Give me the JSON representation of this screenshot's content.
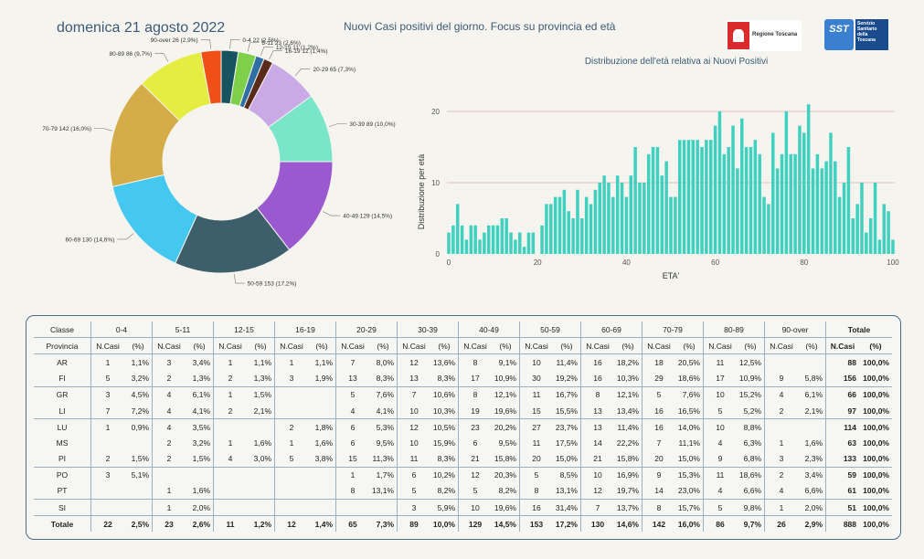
{
  "header": {
    "date": "domenica 21 agosto 2022",
    "title": "Nuovi Casi positivi del giorno. Focus su provincia ed età",
    "logo_regione": "Regione Toscana",
    "logo_sst_mark": "SST",
    "logo_sst_text": "Servizio Sanitario della Toscana"
  },
  "chart_data": [
    {
      "type": "pie",
      "donut": true,
      "slices": [
        {
          "label": "0-4 22 (2,5%)",
          "value": 22,
          "color": "#17545f"
        },
        {
          "label": "5-11 23 (2,6%)",
          "value": 23,
          "color": "#7ed04b"
        },
        {
          "label": "12-15 11 (1,2%)",
          "value": 11,
          "color": "#2f6fa3"
        },
        {
          "label": "16-19 12 (1,4%)",
          "value": 12,
          "color": "#5a2a1a"
        },
        {
          "label": "20-29 65 (7,3%)",
          "value": 65,
          "color": "#c9a9e6"
        },
        {
          "label": "30-39 89 (10,0%)",
          "value": 89,
          "color": "#79e6c9"
        },
        {
          "label": "40-49 129 (14,5%)",
          "value": 129,
          "color": "#9b59d0"
        },
        {
          "label": "50-59 153 (17,2%)",
          "value": 153,
          "color": "#3d5f6b"
        },
        {
          "label": "60-69 130 (14,6%)",
          "value": 130,
          "color": "#45c8f0"
        },
        {
          "label": "70-79 142 (16,0%)",
          "value": 142,
          "color": "#d4ad48"
        },
        {
          "label": "80-89 86 (9,7%)",
          "value": 86,
          "color": "#e5ee40"
        },
        {
          "label": "90-over 26 (2,9%)",
          "value": 26,
          "color": "#f05018"
        }
      ]
    },
    {
      "type": "bar",
      "title": "Distribuzione dell'età relativa ai Nuovi Positivi",
      "xlabel": "ETA'",
      "ylabel": "Distribuzione per età",
      "xlim": [
        0,
        100
      ],
      "ylim": [
        0,
        20
      ],
      "xticks": [
        0,
        20,
        40,
        60,
        80,
        100
      ],
      "yticks": [
        0,
        10,
        20
      ],
      "color": "#40d0bf",
      "x": [
        0,
        1,
        2,
        3,
        4,
        5,
        6,
        7,
        8,
        9,
        10,
        11,
        12,
        13,
        14,
        15,
        16,
        17,
        18,
        19,
        20,
        21,
        22,
        23,
        24,
        25,
        26,
        27,
        28,
        29,
        30,
        31,
        32,
        33,
        34,
        35,
        36,
        37,
        38,
        39,
        40,
        41,
        42,
        43,
        44,
        45,
        46,
        47,
        48,
        49,
        50,
        51,
        52,
        53,
        54,
        55,
        56,
        57,
        58,
        59,
        60,
        61,
        62,
        63,
        64,
        65,
        66,
        67,
        68,
        69,
        70,
        71,
        72,
        73,
        74,
        75,
        76,
        77,
        78,
        79,
        80,
        81,
        82,
        83,
        84,
        85,
        86,
        87,
        88,
        89,
        90,
        91,
        92,
        93,
        94,
        95,
        96,
        97,
        98,
        99,
        100
      ],
      "values": [
        3,
        4,
        7,
        4,
        2,
        4,
        4,
        2,
        3,
        4,
        4,
        4,
        5,
        5,
        3,
        2,
        3,
        1,
        3,
        3,
        0,
        4,
        7,
        7,
        8,
        8,
        9,
        6,
        5,
        9,
        5,
        8,
        7,
        9,
        10,
        11,
        10,
        8,
        11,
        10,
        8,
        11,
        15,
        10,
        10,
        14,
        15,
        15,
        11,
        13,
        8,
        8,
        16,
        16,
        16,
        16,
        16,
        15,
        16,
        16,
        18,
        20,
        14,
        15,
        18,
        12,
        19,
        15,
        15,
        16,
        14,
        8,
        7,
        17,
        12,
        14,
        20,
        14,
        14,
        18,
        17,
        21,
        12,
        14,
        12,
        13,
        17,
        13,
        8,
        10,
        15,
        5,
        7,
        10,
        3,
        5,
        10,
        2,
        7,
        6,
        2
      ]
    }
  ],
  "table": {
    "header_classe": "Classe",
    "header_provincia": "Provincia",
    "classes": [
      "0-4",
      "5-11",
      "12-15",
      "16-19",
      "20-29",
      "30-39",
      "40-49",
      "50-59",
      "60-69",
      "70-79",
      "80-89",
      "90-over"
    ],
    "totale_label": "Totale",
    "ncasi_label": "N.Casi",
    "pct_label": "(%)",
    "rows": [
      {
        "prov": "AR",
        "cells": [
          [
            "1",
            "1,1%"
          ],
          [
            "3",
            "3,4%"
          ],
          [
            "1",
            "1,1%"
          ],
          [
            "1",
            "1,1%"
          ],
          [
            "7",
            "8,0%"
          ],
          [
            "12",
            "13,6%"
          ],
          [
            "8",
            "9,1%"
          ],
          [
            "10",
            "11,4%"
          ],
          [
            "16",
            "18,2%"
          ],
          [
            "18",
            "20,5%"
          ],
          [
            "11",
            "12,5%"
          ],
          [
            "",
            ""
          ]
        ],
        "tot": "88",
        "pct": "100,0%"
      },
      {
        "prov": "FI",
        "cells": [
          [
            "5",
            "3,2%"
          ],
          [
            "2",
            "1,3%"
          ],
          [
            "2",
            "1,3%"
          ],
          [
            "3",
            "1,9%"
          ],
          [
            "13",
            "8,3%"
          ],
          [
            "13",
            "8,3%"
          ],
          [
            "17",
            "10,9%"
          ],
          [
            "30",
            "19,2%"
          ],
          [
            "16",
            "10,3%"
          ],
          [
            "29",
            "18,6%"
          ],
          [
            "17",
            "10,9%"
          ],
          [
            "9",
            "5,8%"
          ]
        ],
        "tot": "156",
        "pct": "100,0%"
      },
      {
        "prov": "GR",
        "cells": [
          [
            "3",
            "4,5%"
          ],
          [
            "4",
            "6,1%"
          ],
          [
            "1",
            "1,5%"
          ],
          [
            "",
            ""
          ],
          [
            "5",
            "7,6%"
          ],
          [
            "7",
            "10,6%"
          ],
          [
            "8",
            "12,1%"
          ],
          [
            "11",
            "16,7%"
          ],
          [
            "8",
            "12,1%"
          ],
          [
            "5",
            "7,6%"
          ],
          [
            "10",
            "15,2%"
          ],
          [
            "4",
            "6,1%"
          ]
        ],
        "tot": "66",
        "pct": "100,0%"
      },
      {
        "prov": "LI",
        "cells": [
          [
            "7",
            "7,2%"
          ],
          [
            "4",
            "4,1%"
          ],
          [
            "2",
            "2,1%"
          ],
          [
            "",
            ""
          ],
          [
            "4",
            "4,1%"
          ],
          [
            "10",
            "10,3%"
          ],
          [
            "19",
            "19,6%"
          ],
          [
            "15",
            "15,5%"
          ],
          [
            "13",
            "13,4%"
          ],
          [
            "16",
            "16,5%"
          ],
          [
            "5",
            "5,2%"
          ],
          [
            "2",
            "2,1%"
          ]
        ],
        "tot": "97",
        "pct": "100,0%"
      },
      {
        "prov": "LU",
        "cells": [
          [
            "1",
            "0,9%"
          ],
          [
            "4",
            "3,5%"
          ],
          [
            "",
            ""
          ],
          [
            "2",
            "1,8%"
          ],
          [
            "6",
            "5,3%"
          ],
          [
            "12",
            "10,5%"
          ],
          [
            "23",
            "20,2%"
          ],
          [
            "27",
            "23,7%"
          ],
          [
            "13",
            "11,4%"
          ],
          [
            "16",
            "14,0%"
          ],
          [
            "10",
            "8,8%"
          ],
          [
            "",
            ""
          ]
        ],
        "tot": "114",
        "pct": "100,0%"
      },
      {
        "prov": "MS",
        "cells": [
          [
            "",
            ""
          ],
          [
            "2",
            "3,2%"
          ],
          [
            "1",
            "1,6%"
          ],
          [
            "1",
            "1,6%"
          ],
          [
            "6",
            "9,5%"
          ],
          [
            "10",
            "15,9%"
          ],
          [
            "6",
            "9,5%"
          ],
          [
            "11",
            "17,5%"
          ],
          [
            "14",
            "22,2%"
          ],
          [
            "7",
            "11,1%"
          ],
          [
            "4",
            "6,3%"
          ],
          [
            "1",
            "1,6%"
          ]
        ],
        "tot": "63",
        "pct": "100,0%"
      },
      {
        "prov": "PI",
        "cells": [
          [
            "2",
            "1,5%"
          ],
          [
            "2",
            "1,5%"
          ],
          [
            "4",
            "3,0%"
          ],
          [
            "5",
            "3,8%"
          ],
          [
            "15",
            "11,3%"
          ],
          [
            "11",
            "8,3%"
          ],
          [
            "21",
            "15,8%"
          ],
          [
            "20",
            "15,0%"
          ],
          [
            "21",
            "15,8%"
          ],
          [
            "20",
            "15,0%"
          ],
          [
            "9",
            "6,8%"
          ],
          [
            "3",
            "2,3%"
          ]
        ],
        "tot": "133",
        "pct": "100,0%"
      },
      {
        "prov": "PO",
        "cells": [
          [
            "3",
            "5,1%"
          ],
          [
            "",
            ""
          ],
          [
            "",
            ""
          ],
          [
            "",
            ""
          ],
          [
            "1",
            "1,7%"
          ],
          [
            "6",
            "10,2%"
          ],
          [
            "12",
            "20,3%"
          ],
          [
            "5",
            "8,5%"
          ],
          [
            "10",
            "16,9%"
          ],
          [
            "9",
            "15,3%"
          ],
          [
            "11",
            "18,6%"
          ],
          [
            "2",
            "3,4%"
          ]
        ],
        "tot": "59",
        "pct": "100,0%"
      },
      {
        "prov": "PT",
        "cells": [
          [
            "",
            ""
          ],
          [
            "1",
            "1,6%"
          ],
          [
            "",
            ""
          ],
          [
            "",
            ""
          ],
          [
            "8",
            "13,1%"
          ],
          [
            "5",
            "8,2%"
          ],
          [
            "5",
            "8,2%"
          ],
          [
            "8",
            "13,1%"
          ],
          [
            "12",
            "19,7%"
          ],
          [
            "14",
            "23,0%"
          ],
          [
            "4",
            "6,6%"
          ],
          [
            "4",
            "6,6%"
          ]
        ],
        "tot": "61",
        "pct": "100,0%"
      },
      {
        "prov": "SI",
        "cells": [
          [
            "",
            ""
          ],
          [
            "1",
            "2,0%"
          ],
          [
            "",
            ""
          ],
          [
            "",
            ""
          ],
          [
            "",
            ""
          ],
          [
            "3",
            "5,9%"
          ],
          [
            "10",
            "19,6%"
          ],
          [
            "16",
            "31,4%"
          ],
          [
            "7",
            "13,7%"
          ],
          [
            "8",
            "15,7%"
          ],
          [
            "5",
            "9,8%"
          ],
          [
            "1",
            "2,0%"
          ]
        ],
        "tot": "51",
        "pct": "100,0%"
      }
    ],
    "total_row": {
      "prov": "Totale",
      "cells": [
        [
          "22",
          "2,5%"
        ],
        [
          "23",
          "2,6%"
        ],
        [
          "11",
          "1,2%"
        ],
        [
          "12",
          "1,4%"
        ],
        [
          "65",
          "7,3%"
        ],
        [
          "89",
          "10,0%"
        ],
        [
          "129",
          "14,5%"
        ],
        [
          "153",
          "17,2%"
        ],
        [
          "130",
          "14,6%"
        ],
        [
          "142",
          "16,0%"
        ],
        [
          "86",
          "9,7%"
        ],
        [
          "26",
          "2,9%"
        ]
      ],
      "tot": "888",
      "pct": "100,0%"
    }
  }
}
